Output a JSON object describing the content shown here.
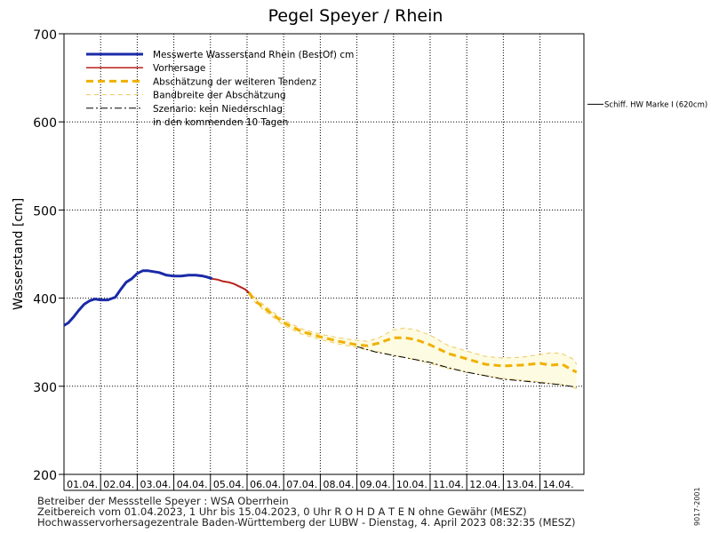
{
  "chart_data": {
    "type": "line",
    "title": "Pegel Speyer / Rhein",
    "ylabel": "Wasserstand  [cm]",
    "ylim": [
      200,
      700
    ],
    "yticks": [
      200,
      300,
      400,
      500,
      600,
      700
    ],
    "xlim": [
      0,
      14.2
    ],
    "categories": [
      "01.04.",
      "02.04.",
      "03.04.",
      "04.04.",
      "05.04.",
      "06.04.",
      "07.04.",
      "08.04.",
      "09.04.",
      "10.04.",
      "11.04.",
      "12.04.",
      "13.04.",
      "14.04."
    ],
    "grid": true,
    "legend_position": "top-left",
    "legend": [
      {
        "label": "Messwerte Wasserstand Rhein (BestOf)   cm",
        "style": "measured"
      },
      {
        "label": "Vorhersage",
        "style": "forecast"
      },
      {
        "label": "Abschätzung der weiteren Tendenz",
        "style": "trend"
      },
      {
        "label": "Bandbreite der Abschätzung",
        "style": "band"
      },
      {
        "label": "Szenario: kein Niederschlag",
        "style": "scenario"
      },
      {
        "label": "in den kommenden 10 Tagen",
        "style": "none"
      }
    ],
    "annotation": {
      "label": "Schiff. HW Marke I (620cm)",
      "value": 620
    },
    "series": [
      {
        "name": "Messwerte Wasserstand Rhein (BestOf)   cm",
        "style": "measured",
        "x": [
          0.0,
          0.12,
          0.25,
          0.4,
          0.55,
          0.7,
          0.85,
          1.0,
          1.2,
          1.4,
          1.55,
          1.7,
          1.85,
          2.0,
          2.15,
          2.3,
          2.45,
          2.6,
          2.8,
          3.0,
          3.2,
          3.4,
          3.6,
          3.8,
          3.9,
          4.05
        ],
        "values": [
          369,
          372,
          378,
          386,
          393,
          397,
          399,
          398,
          398,
          401,
          410,
          418,
          422,
          428,
          431,
          431,
          430,
          429,
          426,
          425,
          425,
          426,
          426,
          425,
          424,
          422
        ]
      },
      {
        "name": "Vorhersage",
        "style": "forecast",
        "x": [
          4.05,
          4.2,
          4.35,
          4.5,
          4.65,
          4.8,
          4.95,
          5.05
        ],
        "values": [
          422,
          421,
          419,
          418,
          416,
          413,
          410,
          406
        ]
      },
      {
        "name": "Abschätzung der weiteren Tendenz",
        "style": "trend",
        "x": [
          5.05,
          5.25,
          5.5,
          5.75,
          6.0,
          6.5,
          7.0,
          7.5,
          8.0,
          8.3,
          8.6,
          9.0,
          9.3,
          9.6,
          10.0,
          10.5,
          11.0,
          11.5,
          12.0,
          12.5,
          13.0,
          13.3,
          13.6,
          13.9,
          14.0
        ],
        "values": [
          406,
          396,
          388,
          380,
          372,
          362,
          356,
          351,
          347,
          346,
          349,
          355,
          355,
          353,
          347,
          337,
          331,
          325,
          323,
          324,
          326,
          324,
          325,
          318,
          316
        ]
      },
      {
        "name": "Bandbreite der Abschätzung (oben)",
        "style": "band-upper",
        "x": [
          5.05,
          5.25,
          5.5,
          5.75,
          6.0,
          6.5,
          7.0,
          7.5,
          8.0,
          8.3,
          8.6,
          9.0,
          9.3,
          9.6,
          10.0,
          10.5,
          11.0,
          11.5,
          12.0,
          12.5,
          13.0,
          13.3,
          13.6,
          13.9,
          14.0
        ],
        "values": [
          408,
          399,
          391,
          383,
          375,
          365,
          359,
          355,
          352,
          351,
          355,
          364,
          366,
          364,
          358,
          346,
          340,
          334,
          332,
          333,
          336,
          338,
          337,
          331,
          325
        ]
      },
      {
        "name": "Bandbreite der Abschätzung (unten)",
        "style": "band-lower",
        "x": [
          5.05,
          5.25,
          5.5,
          5.75,
          6.0,
          6.5,
          7.0,
          7.5,
          8.0,
          8.3,
          8.6,
          9.0,
          9.3,
          9.6,
          10.0,
          10.5,
          11.0,
          11.5,
          12.0,
          12.5,
          13.0,
          13.3,
          13.6,
          13.9,
          14.0
        ],
        "values": [
          404,
          394,
          385,
          377,
          369,
          359,
          353,
          348,
          344,
          341,
          339,
          335,
          333,
          330,
          326,
          320,
          316,
          312,
          309,
          307,
          305,
          303,
          302,
          299,
          297
        ]
      },
      {
        "name": "Szenario: kein Niederschlag",
        "style": "scenario",
        "x": [
          8.0,
          8.5,
          9.0,
          9.5,
          10.0,
          10.5,
          11.0,
          11.5,
          12.0,
          12.5,
          13.0,
          13.5,
          14.0
        ],
        "values": [
          345,
          339,
          335,
          331,
          327,
          321,
          316,
          312,
          308,
          306,
          304,
          302,
          299
        ]
      }
    ]
  },
  "footer": {
    "line1": "Betreiber der Messstelle Speyer : WSA Oberrhein",
    "line2": "Zeitbereich vom 01.04.2023, 1 Uhr bis 15.04.2023, 0 Uhr    R O H D A T E N  ohne Gewähr (MESZ)",
    "line3": "Hochwasservorhersagezentrale Baden-Württemberg der LUBW - Dienstag, 4. April 2023 08:32:35 (MESZ)"
  },
  "doc_id": "9017-2001",
  "colors": {
    "measured": "#1a2aa8",
    "forecast": "#b8221a",
    "trend": "#f0b000",
    "band_line": "#f0c860",
    "band_fill": "#fdfbe2",
    "scenario": "#000000",
    "grid": "#000000"
  }
}
